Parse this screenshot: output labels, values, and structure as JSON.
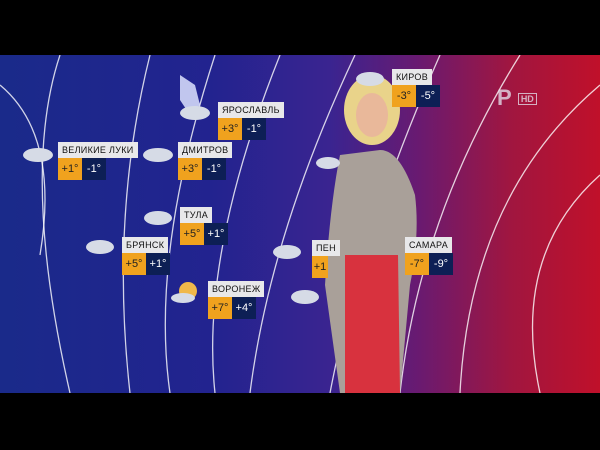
{
  "channel_logo": {
    "mark": "Р",
    "badge": "HD"
  },
  "cities": [
    {
      "name": "ВЕЛИКИЕ ЛУКИ",
      "day": "+1°",
      "night": "-1°",
      "icon": "cloud-rain-icon"
    },
    {
      "name": "ЯРОСЛАВЛЬ",
      "day": "+3°",
      "night": "-1°",
      "icon": "cloud-rain-icon"
    },
    {
      "name": "ДМИТРОВ",
      "day": "+3°",
      "night": "-1°",
      "icon": "cloud-rain-icon"
    },
    {
      "name": "ТУЛА",
      "day": "+5°",
      "night": "+1°",
      "icon": "cloud-rain-icon"
    },
    {
      "name": "БРЯНСК",
      "day": "+5°",
      "night": "+1°",
      "icon": "cloud-rain-icon"
    },
    {
      "name": "ВОРОНЕЖ",
      "day": "+7°",
      "night": "+4°",
      "icon": "sun-cloud-icon"
    },
    {
      "name": "КИРОВ",
      "day": "-3°",
      "night": "-5°",
      "icon": "cloud-snow-icon"
    },
    {
      "name": "САМАРА",
      "day": "-7°",
      "night": "-9°",
      "icon": "none"
    },
    {
      "name": "ПЕН",
      "day": "+1",
      "night": "",
      "icon": "cloud-rain-icon"
    }
  ],
  "colors": {
    "day_box": "#f0a21e",
    "night_box": "#0d1f55",
    "cold_region": "#22238f",
    "warm_region": "#c0102a"
  }
}
